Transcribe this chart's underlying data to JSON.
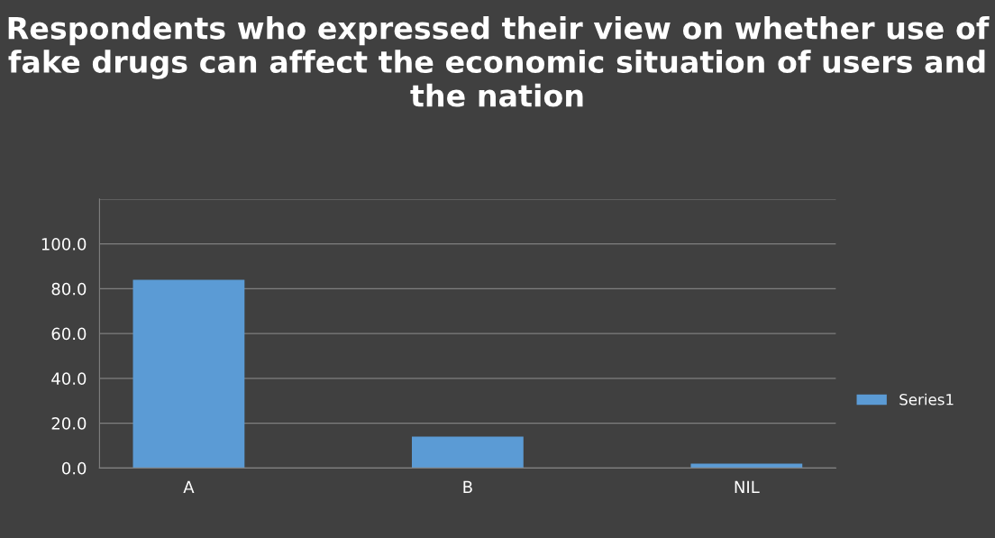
{
  "chart_data": {
    "type": "bar",
    "title": "Respondents who expressed their view on whether use of fake drugs can affect the economic situation of users and the nation",
    "categories": [
      "A",
      "B",
      "NIL"
    ],
    "series": [
      {
        "name": "Series1",
        "color": "#5b9bd5",
        "values": [
          84,
          14,
          2
        ]
      }
    ],
    "ylim": [
      0,
      120
    ],
    "yticks": [
      {
        "value": 0,
        "label": "0.0"
      },
      {
        "value": 20,
        "label": "20.0"
      },
      {
        "value": 40,
        "label": "40.0"
      },
      {
        "value": 60,
        "label": "60.0"
      },
      {
        "value": 80,
        "label": "80.0"
      },
      {
        "value": 100,
        "label": "100.0"
      },
      {
        "value": 120,
        "label": null
      }
    ],
    "grid": "y",
    "legend": "right"
  }
}
